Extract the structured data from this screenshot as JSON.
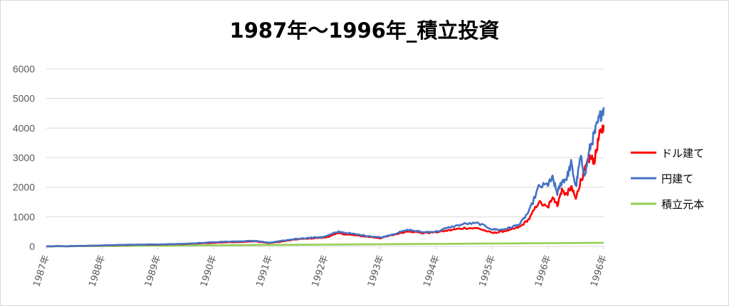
{
  "chart_data": {
    "type": "line",
    "title": "1987年～1996年_積立投資",
    "xlabel": "",
    "ylabel": "",
    "ylim": [
      0,
      6000
    ],
    "yticks": [
      0,
      1000,
      2000,
      3000,
      4000,
      5000,
      6000
    ],
    "xticks": [
      "1987年",
      "1988年",
      "1989年",
      "1990年",
      "1991年",
      "1992年",
      "1993年",
      "1994年",
      "1995年",
      "1996年",
      "1996年"
    ],
    "x": [
      "1987-01",
      "1987-07",
      "1988-01",
      "1988-07",
      "1989-01",
      "1989-07",
      "1990-01",
      "1990-04",
      "1990-07",
      "1990-10",
      "1991-01",
      "1991-04",
      "1991-07",
      "1991-10",
      "1992-01",
      "1992-04",
      "1992-07",
      "1992-10",
      "1993-01",
      "1993-04",
      "1993-07",
      "1993-10",
      "1994-01",
      "1994-04",
      "1994-07",
      "1994-10",
      "1995-01",
      "1995-03",
      "1995-05",
      "1995-07",
      "1995-09",
      "1995-11",
      "1996-01",
      "1996-02",
      "1996-03",
      "1996-04",
      "1996-05",
      "1996-06",
      "1996-07",
      "1996-08",
      "1996-09",
      "1996-10",
      "1996-11",
      "1996-12",
      "1997-01"
    ],
    "series": [
      {
        "name": "ドル建て",
        "color": "#ff0000",
        "values": [
          0,
          10,
          30,
          50,
          60,
          80,
          120,
          140,
          150,
          170,
          110,
          170,
          240,
          270,
          300,
          440,
          380,
          330,
          280,
          400,
          520,
          450,
          480,
          550,
          620,
          610,
          450,
          500,
          560,
          660,
          940,
          1500,
          1300,
          1700,
          1400,
          1900,
          1750,
          2000,
          1600,
          2200,
          2600,
          3000,
          2900,
          3700,
          4100
        ]
      },
      {
        "name": "円建て",
        "color": "#4472c4",
        "values": [
          0,
          12,
          35,
          55,
          65,
          90,
          140,
          160,
          170,
          190,
          120,
          190,
          260,
          290,
          330,
          500,
          420,
          360,
          300,
          430,
          560,
          480,
          500,
          650,
          760,
          780,
          580,
          560,
          640,
          760,
          1200,
          2000,
          2100,
          2300,
          1800,
          2200,
          2300,
          2800,
          2000,
          3000,
          2400,
          3300,
          3800,
          4300,
          4700
        ]
      },
      {
        "name": "積立元本",
        "color": "#92d050",
        "values": [
          0,
          6,
          12,
          18,
          24,
          30,
          36,
          39,
          42,
          45,
          48,
          51,
          54,
          57,
          60,
          63,
          66,
          69,
          72,
          75,
          78,
          81,
          84,
          87,
          90,
          93,
          96,
          98,
          100,
          102,
          104,
          106,
          108,
          109,
          110,
          111,
          112,
          113,
          114,
          115,
          116,
          117,
          118,
          119,
          120
        ]
      }
    ],
    "grid": true,
    "legend": "right"
  }
}
